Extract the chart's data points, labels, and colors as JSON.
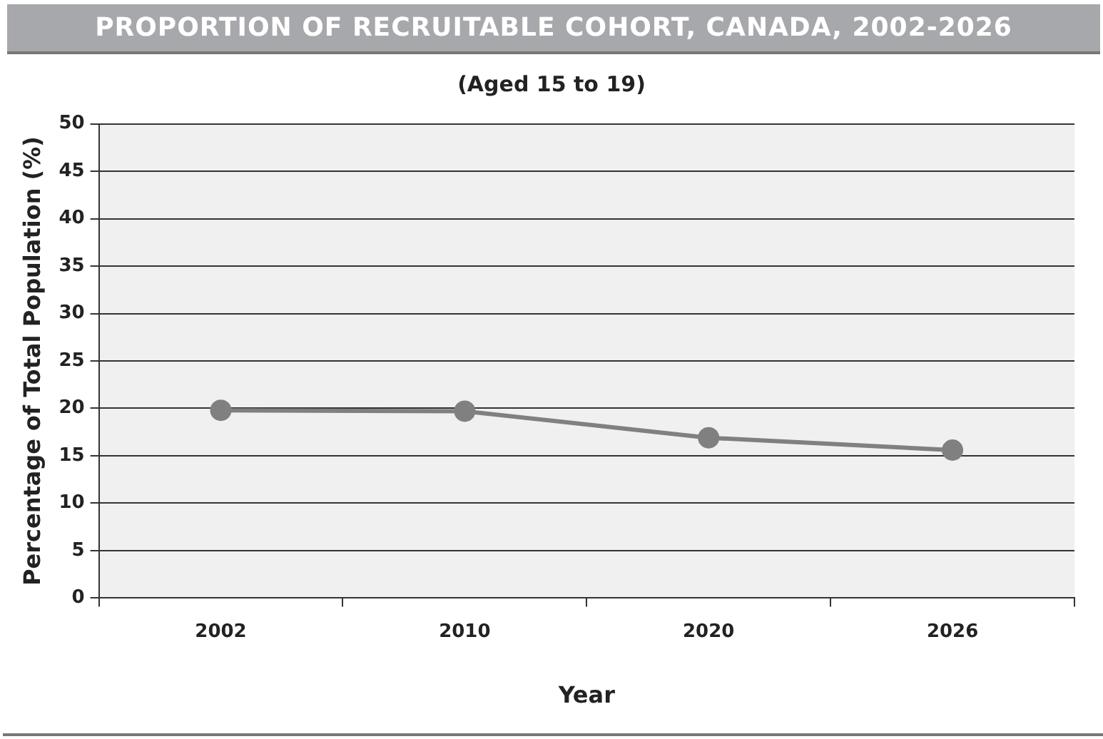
{
  "chart_data": {
    "type": "line",
    "title": "PROPORTION OF RECRUITABLE COHORT, CANADA, 2002-2026",
    "subtitle": "(Aged 15 to 19)",
    "xlabel": "Year",
    "ylabel": "Percentage of Total Population (%)",
    "categories": [
      "2002",
      "2010",
      "2020",
      "2026"
    ],
    "series": [
      {
        "color": "#808080",
        "values": [
          19.8,
          19.7,
          16.9,
          15.6
        ]
      }
    ],
    "ylim": [
      0,
      50
    ],
    "yticks": [
      0,
      5,
      10,
      15,
      20,
      25,
      30,
      35,
      40,
      45,
      50
    ],
    "grid": "y",
    "legend": false,
    "marker": "circle",
    "line_style": "solid"
  }
}
